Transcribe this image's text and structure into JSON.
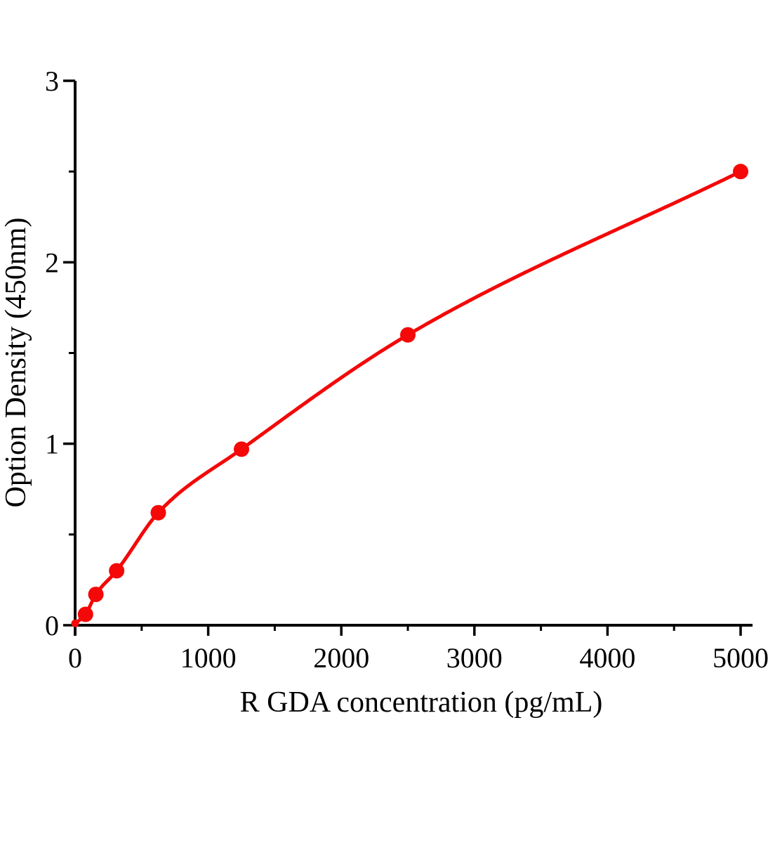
{
  "chart_data": {
    "type": "scatter",
    "subtype": "standard-curve-with-fitted-line",
    "title": "",
    "xlabel": "R GDA  concentration (pg/mL)",
    "ylabel": "Option Density (450nm)",
    "series": [
      {
        "name": "R GDA standard curve",
        "x": [
          0,
          78,
          156,
          312,
          625,
          1250,
          2500,
          5000
        ],
        "y": [
          0.01,
          0.06,
          0.17,
          0.3,
          0.62,
          0.97,
          1.6,
          2.5
        ],
        "marker": "filled-circle",
        "line": "smooth-fit"
      }
    ],
    "xlim": [
      0,
      5000
    ],
    "ylim": [
      0,
      3
    ],
    "x_major_ticks": [
      0,
      1000,
      2000,
      3000,
      4000,
      5000
    ],
    "x_major_tick_labels": [
      "0",
      "1000",
      "2000",
      "3000",
      "4000",
      "5000"
    ],
    "x_minor_ticks": [
      500,
      1500,
      2500,
      3500,
      4500
    ],
    "y_major_ticks": [
      0,
      1,
      2,
      3
    ],
    "y_major_tick_labels": [
      "0",
      "1",
      "2",
      "3"
    ],
    "y_minor_ticks": [
      0.5,
      1.5,
      2.5
    ],
    "grid": false,
    "legend": false,
    "colors": {
      "curve": "#f40808",
      "axis": "#000000",
      "background": "#ffffff"
    }
  }
}
